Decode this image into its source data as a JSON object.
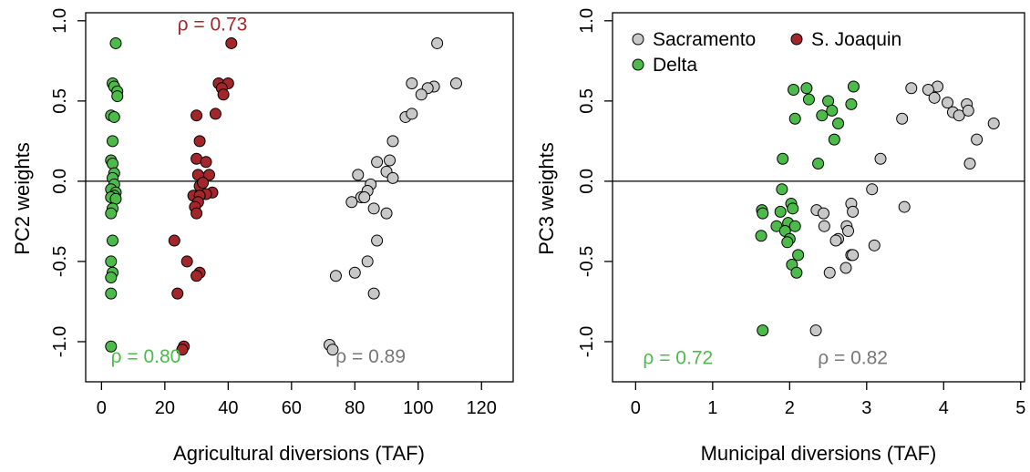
{
  "colors": {
    "Sacramento": "#c8c8c8",
    "S. Joaquin": "#a3262a",
    "Delta": "#4cbb4a"
  },
  "chart_data": [
    {
      "type": "scatter",
      "xlabel": "Agricultural diversions (TAF)",
      "ylabel": "PC2 weights",
      "xlim": [
        -5,
        130
      ],
      "ylim": [
        -1.25,
        1.05
      ],
      "xticks": [
        "0",
        "20",
        "40",
        "60",
        "80",
        "100",
        "120"
      ],
      "xtick_values": [
        0,
        20,
        40,
        60,
        80,
        100,
        120
      ],
      "yticks": [
        "-1.0",
        "-0.5",
        "0.0",
        "0.5",
        "1.0"
      ],
      "ytick_values": [
        -1.0,
        -0.5,
        0.0,
        0.5,
        1.0
      ],
      "hline": 0,
      "legend": null,
      "annotations": [
        {
          "text": "ρ  = 0.73",
          "series": "S. Joaquin",
          "x": 35,
          "y": 0.94
        },
        {
          "text": "ρ  = 0.80",
          "series": "Delta",
          "x": 14,
          "y": -1.13
        },
        {
          "text": "ρ  = 0.89",
          "series": "Sacramento",
          "x": 85,
          "y": -1.13
        }
      ],
      "series": [
        {
          "name": "Delta",
          "x": [
            4.5,
            3.5,
            4.0,
            5.0,
            5.0,
            3.0,
            4.0,
            3.5,
            3.0,
            3.5,
            4.0,
            3.5,
            4.0,
            3.0,
            4.5,
            4.0,
            3.0,
            4.5,
            3.5,
            3.0,
            3.5,
            3.0,
            3.5,
            3.0,
            3.0,
            3.0
          ],
          "y": [
            0.86,
            0.61,
            0.59,
            0.56,
            0.53,
            0.41,
            0.4,
            0.25,
            0.13,
            0.11,
            0.05,
            0.02,
            -0.02,
            -0.05,
            -0.07,
            -0.09,
            -0.1,
            -0.11,
            -0.17,
            -0.2,
            -0.37,
            -0.5,
            -0.57,
            -0.6,
            -0.7,
            -1.03
          ]
        },
        {
          "name": "S. Joaquin",
          "x": [
            41,
            37,
            40,
            38,
            38.5,
            30,
            36,
            31,
            30,
            33,
            30.5,
            34,
            31,
            32,
            35,
            33,
            29,
            31,
            30.5,
            29.5,
            30,
            23,
            27,
            31,
            30,
            24,
            26,
            25.5
          ],
          "y": [
            0.86,
            0.61,
            0.61,
            0.58,
            0.54,
            0.41,
            0.42,
            0.25,
            0.14,
            0.12,
            0.04,
            0.04,
            -0.03,
            -0.01,
            -0.07,
            -0.08,
            -0.09,
            -0.09,
            -0.13,
            -0.16,
            -0.2,
            -0.37,
            -0.5,
            -0.57,
            -0.59,
            -0.7,
            -1.03,
            -1.05
          ]
        },
        {
          "name": "Sacramento",
          "x": [
            106,
            112,
            98,
            105,
            103,
            101,
            96,
            98,
            92,
            87,
            91,
            90,
            81,
            92,
            85,
            84,
            82,
            83,
            79,
            86,
            90,
            87,
            80,
            84,
            74,
            86,
            72,
            73
          ],
          "y": [
            0.86,
            0.61,
            0.61,
            0.59,
            0.58,
            0.54,
            0.4,
            0.42,
            0.25,
            0.12,
            0.13,
            0.06,
            0.04,
            0.02,
            -0.02,
            -0.06,
            -0.1,
            -0.1,
            -0.13,
            -0.17,
            -0.2,
            -0.37,
            -0.57,
            -0.5,
            -0.59,
            -0.7,
            -1.02,
            -1.05
          ]
        }
      ]
    },
    {
      "type": "scatter",
      "xlabel": "Municipal diversions (TAF)",
      "ylabel": "PC3 weights",
      "xlim": [
        -0.3,
        5.05
      ],
      "ylim": [
        -1.25,
        1.05
      ],
      "xticks": [
        "0",
        "1",
        "2",
        "3",
        "4",
        "5"
      ],
      "xtick_values": [
        0,
        1,
        2,
        3,
        4,
        5
      ],
      "yticks": [
        "-1.0",
        "-0.5",
        "0.0",
        "0.5",
        "1.0"
      ],
      "ytick_values": [
        -1.0,
        -0.5,
        0.0,
        0.5,
        1.0
      ],
      "hline": 0,
      "legend": {
        "position": "top-left",
        "entries": [
          "Sacramento",
          "S. Joaquin",
          "Delta"
        ]
      },
      "annotations": [
        {
          "text": "ρ  = 0.72",
          "series": "Delta",
          "x": 0.55,
          "y": -1.14
        },
        {
          "text": "ρ  = 0.82",
          "series": "Sacramento",
          "x": 2.82,
          "y": -1.14
        }
      ],
      "series": [
        {
          "name": "Sacramento",
          "x": [
            3.92,
            3.58,
            3.8,
            3.88,
            4.05,
            4.3,
            4.12,
            4.2,
            4.32,
            3.46,
            4.65,
            4.43,
            3.18,
            4.34,
            3.07,
            2.8,
            3.49,
            2.35,
            2.44,
            2.82,
            2.74,
            2.45,
            2.63,
            2.76,
            2.6,
            2.8,
            3.1,
            2.82,
            2.73,
            2.52,
            2.34
          ],
          "y": [
            0.59,
            0.58,
            0.57,
            0.52,
            0.49,
            0.48,
            0.43,
            0.41,
            0.44,
            0.39,
            0.36,
            0.26,
            0.14,
            0.11,
            -0.05,
            -0.14,
            -0.16,
            -0.18,
            -0.2,
            -0.19,
            -0.28,
            -0.28,
            -0.36,
            -0.31,
            -0.37,
            -0.46,
            -0.4,
            -0.46,
            -0.54,
            -0.57,
            -0.93
          ]
        },
        {
          "name": "Delta",
          "x": [
            2.22,
            2.83,
            2.05,
            2.25,
            2.5,
            2.8,
            2.55,
            2.42,
            2.63,
            2.07,
            2.58,
            1.91,
            2.37,
            1.9,
            1.64,
            1.65,
            2.02,
            1.88,
            2.04,
            1.98,
            1.83,
            2.07,
            1.94,
            1.63,
            2.0,
            1.97,
            2.11,
            2.03,
            2.09,
            1.65
          ],
          "y": [
            0.58,
            0.59,
            0.57,
            0.51,
            0.5,
            0.48,
            0.44,
            0.41,
            0.36,
            0.39,
            0.26,
            0.14,
            0.11,
            -0.05,
            -0.18,
            -0.2,
            -0.14,
            -0.19,
            -0.17,
            -0.26,
            -0.28,
            -0.28,
            -0.31,
            -0.34,
            -0.36,
            -0.38,
            -0.46,
            -0.52,
            -0.57,
            -0.93
          ]
        }
      ]
    }
  ]
}
